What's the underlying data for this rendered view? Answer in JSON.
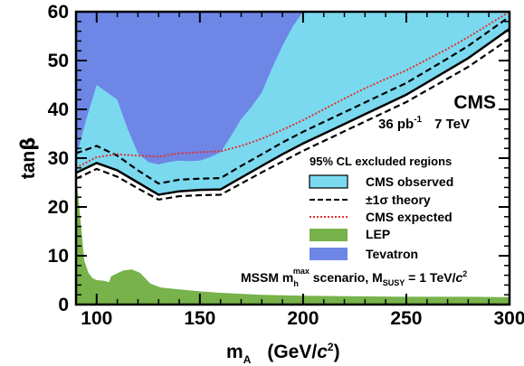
{
  "chart_data": {
    "type": "area",
    "xlabel": "m",
    "xlabel_sub": "A",
    "xlabel_unit_open": "(GeV/",
    "xlabel_unit_c": "c",
    "xlabel_unit_pow": "2",
    "xlabel_unit_close": ")",
    "ylabel": "tan",
    "ylabel_greek": "β",
    "xlim": [
      90,
      300
    ],
    "ylim": [
      0,
      60
    ],
    "x_ticks": [
      "100",
      "150",
      "200",
      "250",
      "300"
    ],
    "x_tick_values": [
      100,
      150,
      200,
      250,
      300
    ],
    "y_ticks": [
      "0",
      "10",
      "20",
      "30",
      "40",
      "50",
      "60"
    ],
    "y_tick_values": [
      0,
      10,
      20,
      30,
      40,
      50,
      60
    ],
    "grid": false,
    "legend_position": "right",
    "legend_title": "95% CL excluded regions",
    "experiment_label": "CMS",
    "lumi_value": "36 pb",
    "lumi_exp": "-1",
    "energy_label": "7 TeV",
    "scenario_label": {
      "prefix": "MSSM m",
      "sub": "h",
      "sup": "max",
      "middle": " scenario, M",
      "sub2": "SUSY",
      "suffix": " = 1 TeV/",
      "c": "c",
      "pow": "2"
    },
    "series": [
      {
        "name": "CMS observed",
        "kind": "filled-region-above",
        "color": "#7ad9ef",
        "x": [
          90,
          100,
          110,
          120,
          130,
          140,
          150,
          160,
          170,
          180,
          190,
          200,
          210,
          220,
          230,
          240,
          250,
          260,
          270,
          280,
          290,
          300
        ],
        "y": [
          27,
          29,
          27.5,
          25,
          22.5,
          23.2,
          23.5,
          23.6,
          26,
          28.4,
          30.8,
          33,
          35,
          37,
          39,
          41,
          43,
          45.5,
          48,
          50.5,
          53.5,
          56.5
        ]
      },
      {
        "name": "±1σ theory",
        "kind": "dashed-lines",
        "color": "#000000",
        "bands": [
          {
            "x": [
              90,
              100,
              110,
              120,
              130,
              140,
              150,
              160,
              170,
              180,
              190,
              200,
              210,
              220,
              230,
              240,
              250,
              260,
              270,
              280,
              290,
              300
            ],
            "y": [
              31,
              32.5,
              30.5,
              27.5,
              24.8,
              25.6,
              25.8,
              25.9,
              28.4,
              30.8,
              33.2,
              35.4,
              37.4,
              39.4,
              41.4,
              43.4,
              45.4,
              47.9,
              50.4,
              53,
              56,
              59
            ]
          },
          {
            "x": [
              90,
              100,
              110,
              120,
              130,
              140,
              150,
              160,
              170,
              180,
              190,
              200,
              210,
              220,
              230,
              240,
              250,
              260,
              270,
              280,
              290,
              300
            ],
            "y": [
              25.8,
              27.8,
              26.2,
              23.8,
              21.5,
              22.2,
              22.4,
              22.5,
              24.8,
              27.1,
              29.3,
              31.5,
              33.5,
              35.5,
              37.5,
              39.5,
              41.5,
              43.9,
              46.3,
              48.7,
              51.6,
              54.5
            ]
          }
        ]
      },
      {
        "name": "CMS expected",
        "kind": "dotted-line",
        "color": "#dd3333",
        "x": [
          90,
          100,
          110,
          120,
          130,
          140,
          150,
          160,
          170,
          180,
          190,
          200,
          210,
          220,
          230,
          240,
          250,
          260,
          270,
          280,
          290,
          300
        ],
        "y": [
          28,
          30.2,
          30.8,
          30.5,
          30.3,
          31,
          31.2,
          31.4,
          32.5,
          34,
          35.8,
          37.8,
          40,
          42.2,
          44.3,
          46.2,
          48,
          50.2,
          52.4,
          54.8,
          57.4,
          60
        ]
      },
      {
        "name": "LEP",
        "kind": "filled-region-below",
        "color": "#77b24a",
        "x": [
          90,
          92,
          94,
          96,
          98,
          100,
          103,
          106,
          107,
          110,
          113,
          117,
          121,
          126,
          131,
          140,
          150,
          160,
          170,
          180,
          190,
          200,
          220,
          250,
          280,
          300
        ],
        "y": [
          27,
          18,
          9,
          6.5,
          5.4,
          5,
          4.9,
          4.6,
          5.8,
          6.4,
          7,
          7.2,
          6.5,
          4.3,
          3.5,
          3.1,
          2.7,
          2.4,
          2.2,
          2,
          1.9,
          1.8,
          1.7,
          1.6,
          1.6,
          1.5
        ]
      },
      {
        "name": "Tevatron",
        "kind": "filled-region-above",
        "color": "#6e86e6",
        "x": [
          90,
          95,
          100,
          105,
          110,
          115,
          120,
          125,
          130,
          135,
          140,
          145,
          150,
          155,
          160,
          165,
          170,
          175,
          180,
          185,
          190,
          195,
          200
        ],
        "y": [
          30,
          38,
          45,
          43.5,
          42,
          36,
          31,
          29.2,
          28.7,
          29.2,
          29.5,
          29.4,
          29.5,
          30.2,
          31.2,
          34.5,
          38,
          40.5,
          43.5,
          48.5,
          53,
          57,
          60
        ]
      }
    ]
  }
}
